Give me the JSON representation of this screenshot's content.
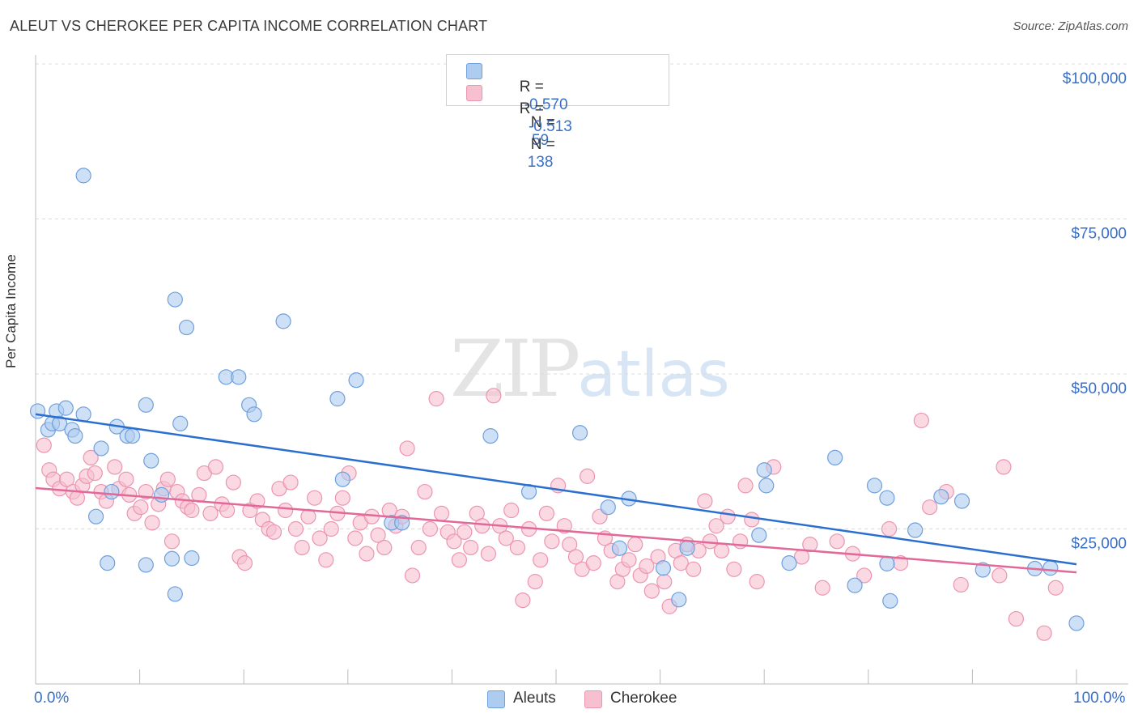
{
  "title": "ALEUT VS CHEROKEE PER CAPITA INCOME CORRELATION CHART",
  "source": "Source: ZipAtlas.com",
  "watermark": {
    "zip": "ZIP",
    "atlas": "atlas"
  },
  "legend_top": {
    "rows": [
      {
        "r_label": "R =",
        "r_value": "-0.570",
        "n_label": "N =",
        "n_value": " 59"
      },
      {
        "r_label": "R =",
        "r_value": " -0.513",
        "n_label": "N =",
        "n_value": "138"
      }
    ]
  },
  "colors": {
    "aleuts_fill": "#aecbf0",
    "aleuts_stroke": "#6f9fdc",
    "aleuts_line": "#2a6fd0",
    "cherokee_fill": "#f7c0d0",
    "cherokee_stroke": "#ec95b1",
    "cherokee_line": "#e26898",
    "axis_label": "#3a6fc6",
    "grid": "#dcdcdc"
  },
  "chart_data": {
    "type": "scatter",
    "title": "ALEUT VS CHEROKEE PER CAPITA INCOME CORRELATION CHART",
    "xlabel": "",
    "ylabel": "Per Capita Income",
    "xlim": [
      0,
      100
    ],
    "ylim": [
      0,
      102000
    ],
    "x_tick_labels": [
      "0.0%",
      "100.0%"
    ],
    "y_ticks": [
      25000,
      50000,
      75000,
      100000
    ],
    "y_tick_labels": [
      "$25,000",
      "$50,000",
      "$75,000",
      "$100,000"
    ],
    "grid": true,
    "legend_position": "bottom",
    "series": [
      {
        "name": "Aleuts",
        "R": -0.57,
        "N": 59,
        "trend": [
          [
            0,
            43500
          ],
          [
            100,
            19300
          ]
        ],
        "points": [
          [
            0.2,
            44000
          ],
          [
            1.2,
            41000
          ],
          [
            1.6,
            42000
          ],
          [
            2.0,
            44000
          ],
          [
            2.3,
            42000
          ],
          [
            2.9,
            44500
          ],
          [
            3.5,
            41000
          ],
          [
            3.8,
            40000
          ],
          [
            4.6,
            82000
          ],
          [
            4.6,
            43500
          ],
          [
            5.8,
            27000
          ],
          [
            6.3,
            38000
          ],
          [
            6.9,
            19500
          ],
          [
            7.3,
            31000
          ],
          [
            7.8,
            41500
          ],
          [
            8.8,
            40000
          ],
          [
            9.3,
            40000
          ],
          [
            10.6,
            45000
          ],
          [
            10.6,
            19200
          ],
          [
            11.1,
            36000
          ],
          [
            12.1,
            30500
          ],
          [
            13.1,
            20200
          ],
          [
            13.4,
            14500
          ],
          [
            13.4,
            62000
          ],
          [
            13.9,
            42000
          ],
          [
            14.5,
            57500
          ],
          [
            15.0,
            20300
          ],
          [
            18.3,
            49500
          ],
          [
            19.5,
            49500
          ],
          [
            20.5,
            45000
          ],
          [
            21.0,
            43500
          ],
          [
            23.8,
            58500
          ],
          [
            29.0,
            46000
          ],
          [
            29.5,
            33000
          ],
          [
            30.8,
            49000
          ],
          [
            34.2,
            26000
          ],
          [
            35.2,
            26000
          ],
          [
            43.7,
            40000
          ],
          [
            47.4,
            31000
          ],
          [
            52.3,
            40500
          ],
          [
            55.0,
            28500
          ],
          [
            56.1,
            21900
          ],
          [
            57.0,
            29900
          ],
          [
            60.3,
            18700
          ],
          [
            61.8,
            13600
          ],
          [
            62.6,
            21900
          ],
          [
            69.5,
            24000
          ],
          [
            70.0,
            34500
          ],
          [
            70.2,
            32000
          ],
          [
            72.4,
            19500
          ],
          [
            76.8,
            36500
          ],
          [
            78.7,
            15900
          ],
          [
            80.6,
            32000
          ],
          [
            81.8,
            30000
          ],
          [
            81.8,
            19400
          ],
          [
            82.1,
            13400
          ],
          [
            84.5,
            24800
          ],
          [
            87.0,
            30200
          ],
          [
            89.0,
            29500
          ],
          [
            91.0,
            18400
          ],
          [
            96.0,
            18600
          ],
          [
            97.5,
            18700
          ],
          [
            100.0,
            9800
          ]
        ]
      },
      {
        "name": "Cherokee",
        "R": -0.513,
        "N": 138,
        "trend": [
          [
            0,
            31600
          ],
          [
            100,
            18000
          ]
        ],
        "points": [
          [
            0.8,
            38500
          ],
          [
            1.3,
            34500
          ],
          [
            1.7,
            33000
          ],
          [
            2.3,
            31500
          ],
          [
            3.0,
            33000
          ],
          [
            3.6,
            31000
          ],
          [
            4.0,
            30000
          ],
          [
            4.5,
            32000
          ],
          [
            4.9,
            33500
          ],
          [
            5.3,
            36500
          ],
          [
            5.7,
            34000
          ],
          [
            6.3,
            31000
          ],
          [
            6.8,
            29500
          ],
          [
            7.6,
            35000
          ],
          [
            8.0,
            31500
          ],
          [
            8.7,
            33000
          ],
          [
            9.0,
            30500
          ],
          [
            9.5,
            27500
          ],
          [
            10.1,
            28500
          ],
          [
            10.6,
            31000
          ],
          [
            11.2,
            26000
          ],
          [
            11.8,
            29000
          ],
          [
            12.3,
            31500
          ],
          [
            12.7,
            33000
          ],
          [
            13.1,
            23000
          ],
          [
            13.6,
            31000
          ],
          [
            14.1,
            29500
          ],
          [
            14.6,
            28500
          ],
          [
            15.0,
            28000
          ],
          [
            15.7,
            30500
          ],
          [
            16.2,
            34000
          ],
          [
            16.8,
            27500
          ],
          [
            17.3,
            35000
          ],
          [
            17.9,
            29000
          ],
          [
            18.4,
            28000
          ],
          [
            19.0,
            32500
          ],
          [
            19.6,
            20500
          ],
          [
            20.1,
            19500
          ],
          [
            20.6,
            28000
          ],
          [
            21.3,
            29500
          ],
          [
            21.8,
            26500
          ],
          [
            22.4,
            25000
          ],
          [
            22.9,
            24500
          ],
          [
            23.4,
            31500
          ],
          [
            24.0,
            28000
          ],
          [
            24.5,
            32500
          ],
          [
            25.0,
            25000
          ],
          [
            25.6,
            22000
          ],
          [
            26.2,
            27000
          ],
          [
            26.8,
            30000
          ],
          [
            27.3,
            23500
          ],
          [
            27.9,
            20000
          ],
          [
            28.4,
            25000
          ],
          [
            29.0,
            27500
          ],
          [
            29.5,
            30000
          ],
          [
            30.1,
            34000
          ],
          [
            30.7,
            23500
          ],
          [
            31.2,
            26000
          ],
          [
            31.8,
            21000
          ],
          [
            32.3,
            27000
          ],
          [
            32.9,
            24000
          ],
          [
            33.5,
            22000
          ],
          [
            34.0,
            28000
          ],
          [
            34.6,
            25500
          ],
          [
            35.2,
            27000
          ],
          [
            35.7,
            38000
          ],
          [
            36.2,
            17500
          ],
          [
            36.8,
            22000
          ],
          [
            37.4,
            31000
          ],
          [
            37.9,
            25000
          ],
          [
            38.5,
            46000
          ],
          [
            39.0,
            27500
          ],
          [
            39.6,
            24500
          ],
          [
            40.2,
            23000
          ],
          [
            40.7,
            20000
          ],
          [
            41.2,
            24500
          ],
          [
            41.8,
            22000
          ],
          [
            42.4,
            27500
          ],
          [
            42.9,
            25500
          ],
          [
            43.5,
            21000
          ],
          [
            44.0,
            46500
          ],
          [
            44.6,
            25500
          ],
          [
            45.2,
            23500
          ],
          [
            45.7,
            28000
          ],
          [
            46.3,
            22000
          ],
          [
            46.8,
            13500
          ],
          [
            47.4,
            25000
          ],
          [
            48.0,
            16500
          ],
          [
            48.5,
            20000
          ],
          [
            49.1,
            27500
          ],
          [
            49.6,
            23000
          ],
          [
            50.2,
            32000
          ],
          [
            50.8,
            25500
          ],
          [
            51.3,
            22500
          ],
          [
            51.9,
            20500
          ],
          [
            52.5,
            18500
          ],
          [
            53.0,
            33500
          ],
          [
            53.6,
            19500
          ],
          [
            54.2,
            27000
          ],
          [
            54.7,
            23500
          ],
          [
            55.3,
            21500
          ],
          [
            55.9,
            16500
          ],
          [
            56.4,
            18500
          ],
          [
            57.0,
            20000
          ],
          [
            57.6,
            22500
          ],
          [
            58.1,
            17500
          ],
          [
            58.7,
            19000
          ],
          [
            59.2,
            15000
          ],
          [
            59.8,
            20500
          ],
          [
            60.4,
            16500
          ],
          [
            60.9,
            12500
          ],
          [
            61.5,
            21500
          ],
          [
            62.0,
            19500
          ],
          [
            62.6,
            22500
          ],
          [
            63.2,
            18500
          ],
          [
            63.7,
            21500
          ],
          [
            64.3,
            29500
          ],
          [
            64.8,
            23000
          ],
          [
            65.4,
            25500
          ],
          [
            65.9,
            21500
          ],
          [
            66.5,
            27000
          ],
          [
            67.1,
            18500
          ],
          [
            67.7,
            23000
          ],
          [
            68.2,
            32000
          ],
          [
            68.8,
            26500
          ],
          [
            69.3,
            16500
          ],
          [
            70.9,
            35000
          ],
          [
            73.6,
            20500
          ],
          [
            74.4,
            22500
          ],
          [
            75.6,
            15500
          ],
          [
            77.0,
            23000
          ],
          [
            78.5,
            21000
          ],
          [
            79.6,
            17500
          ],
          [
            82.0,
            25000
          ],
          [
            83.1,
            19500
          ],
          [
            85.1,
            42500
          ],
          [
            85.9,
            28500
          ],
          [
            87.5,
            31000
          ],
          [
            88.9,
            16000
          ],
          [
            92.6,
            17500
          ],
          [
            93.0,
            35000
          ],
          [
            94.2,
            10500
          ],
          [
            96.9,
            8200
          ],
          [
            98.0,
            15500
          ]
        ]
      }
    ]
  },
  "legend_bottom": [
    {
      "label": "Aleuts"
    },
    {
      "label": "Cherokee"
    }
  ]
}
